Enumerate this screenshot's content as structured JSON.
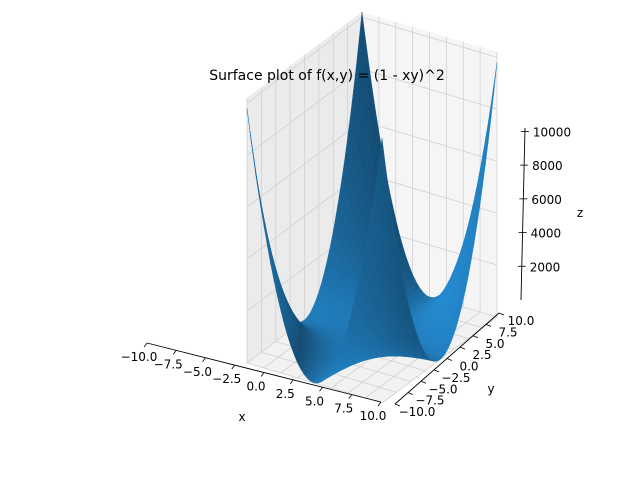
{
  "chart_data": {
    "type": "surface",
    "function": "f(x,y) = (1 - xy)^2",
    "title": "Surface plot of f(x,y) = (1 - xy)^2",
    "xlabel": "x",
    "ylabel": "y",
    "zlabel": "z",
    "x_range": [
      -10,
      10
    ],
    "y_range": [
      -10,
      10
    ],
    "z_range": [
      0,
      10201
    ],
    "x_ticks": [
      -10.0,
      -7.5,
      -5.0,
      -2.5,
      0.0,
      2.5,
      5.0,
      7.5,
      10.0
    ],
    "x_tick_labels": [
      "−10.0",
      "−7.5",
      "−5.0",
      "−2.5",
      "0.0",
      "2.5",
      "5.0",
      "7.5",
      "10.0"
    ],
    "y_ticks": [
      -10.0,
      -7.5,
      -5.0,
      -2.5,
      0.0,
      2.5,
      5.0,
      7.5,
      10.0
    ],
    "y_tick_labels": [
      "−10.0",
      "−7.5",
      "−5.0",
      "−2.5",
      "0.0",
      "2.5",
      "5.0",
      "7.5",
      "10.0"
    ],
    "z_ticks": [
      2000,
      4000,
      6000,
      8000,
      10000
    ],
    "z_tick_labels": [
      "2000",
      "4000",
      "6000",
      "8000",
      "10000"
    ],
    "grid": true,
    "surface_color": "#1f77b4",
    "sample_values": [
      {
        "x": -10,
        "y": -10,
        "z": 9801
      },
      {
        "x": -10,
        "y": 10,
        "z": 10201
      },
      {
        "x": 10,
        "y": -10,
        "z": 10201
      },
      {
        "x": 10,
        "y": 10,
        "z": 9801
      },
      {
        "x": 0,
        "y": 0,
        "z": 1
      }
    ]
  }
}
